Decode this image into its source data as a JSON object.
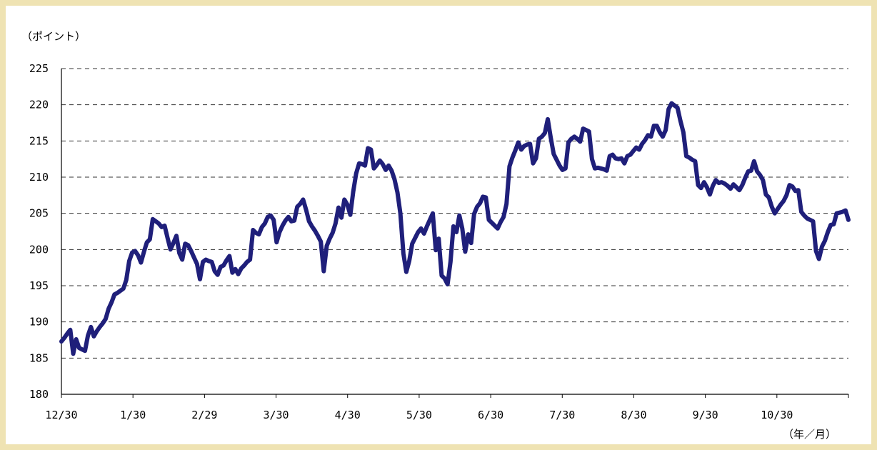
{
  "chart_data": {
    "type": "line",
    "ylabel": "（ポイント）",
    "xlabel": "（年／月）",
    "ylim": [
      180,
      225
    ],
    "y_ticks": [
      "180",
      "185",
      "190",
      "195",
      "200",
      "205",
      "210",
      "215",
      "220",
      "225"
    ],
    "x_ticks": [
      "12/30",
      "1/30",
      "2/29",
      "3/30",
      "4/30",
      "5/30",
      "6/30",
      "7/30",
      "8/30",
      "9/30",
      "10/30"
    ],
    "grid": "horizontal-dashed",
    "line_color": "#1f1f7a",
    "series": [
      {
        "values": [
          187.3,
          187.8,
          188.4,
          188.9,
          185.6,
          187.6,
          186.4,
          186.2,
          186.0,
          188.1,
          189.3,
          188.0,
          188.7,
          189.3,
          189.8,
          190.4,
          191.8,
          192.7,
          193.8,
          194.0,
          194.3,
          194.6,
          195.8,
          198.4,
          199.6,
          199.8,
          199.2,
          198.2,
          199.7,
          201.0,
          201.4,
          204.2,
          203.9,
          203.6,
          203.1,
          203.3,
          201.6,
          200.0,
          200.9,
          201.9,
          199.5,
          198.6,
          200.8,
          200.6,
          199.8,
          198.9,
          198.0,
          195.9,
          198.3,
          198.6,
          198.4,
          198.3,
          197.0,
          196.5,
          197.6,
          197.8,
          198.5,
          199.1,
          196.8,
          197.3,
          196.6,
          197.4,
          197.8,
          198.3,
          198.6,
          202.7,
          202.3,
          202.1,
          203.1,
          203.6,
          204.5,
          204.7,
          204.1,
          201.0,
          202.4,
          203.3,
          204.0,
          204.5,
          203.9,
          204.0,
          205.9,
          206.3,
          206.9,
          205.5,
          203.9,
          203.2,
          202.6,
          201.9,
          201.1,
          197.0,
          200.5,
          201.5,
          202.3,
          203.6,
          205.8,
          204.4,
          206.9,
          206.2,
          204.8,
          208.0,
          210.5,
          211.9,
          211.8,
          211.6,
          214.0,
          213.8,
          211.2,
          211.7,
          212.3,
          211.8,
          211.0,
          211.6,
          210.9,
          209.7,
          207.9,
          205.0,
          199.5,
          196.9,
          198.4,
          200.8,
          201.6,
          202.4,
          202.9,
          202.2,
          203.2,
          204.1,
          205.0,
          199.9,
          201.5,
          196.4,
          196.0,
          195.2,
          198.3,
          203.2,
          202.4,
          204.7,
          202.9,
          199.7,
          202.1,
          200.9,
          204.9,
          205.9,
          206.4,
          207.3,
          207.2,
          204.1,
          203.7,
          203.3,
          202.9,
          203.8,
          204.5,
          206.3,
          211.5,
          212.7,
          213.7,
          214.8,
          213.8,
          214.3,
          214.5,
          214.6,
          211.9,
          212.6,
          215.3,
          215.6,
          216.1,
          218.0,
          215.5,
          213.2,
          212.4,
          211.6,
          211.0,
          211.2,
          214.8,
          215.3,
          215.6,
          215.3,
          214.9,
          216.7,
          216.5,
          216.3,
          212.5,
          211.2,
          211.3,
          211.2,
          211.1,
          210.9,
          212.9,
          213.1,
          212.6,
          212.5,
          212.6,
          211.9,
          212.9,
          213.1,
          213.6,
          214.1,
          213.8,
          214.6,
          215.1,
          215.8,
          215.6,
          217.1,
          217.1,
          216.2,
          215.6,
          216.5,
          219.4,
          220.2,
          219.9,
          219.6,
          217.8,
          216.2,
          212.9,
          212.7,
          212.4,
          212.2,
          208.9,
          208.5,
          209.3,
          208.6,
          207.6,
          208.8,
          209.6,
          209.2,
          209.3,
          209.1,
          208.8,
          208.4,
          209.0,
          208.6,
          208.2,
          208.9,
          209.9,
          210.8,
          210.9,
          212.2,
          210.8,
          210.3,
          209.6,
          207.6,
          207.2,
          205.9,
          205.0,
          205.6,
          206.2,
          206.7,
          207.5,
          208.9,
          208.7,
          208.1,
          208.2,
          205.2,
          204.7,
          204.3,
          204.1,
          203.9,
          199.8,
          198.7,
          200.4,
          201.2,
          202.4,
          203.4,
          203.5,
          205.0,
          205.1,
          205.2,
          205.4,
          204.1
        ]
      }
    ]
  }
}
